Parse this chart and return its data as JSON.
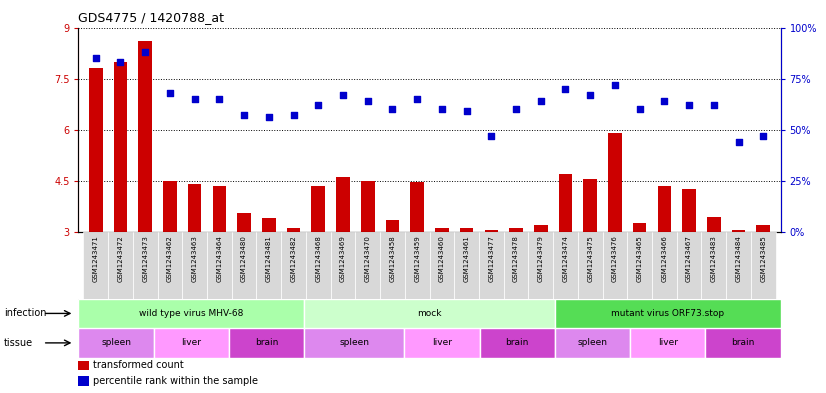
{
  "title": "GDS4775 / 1420788_at",
  "samples": [
    "GSM1243471",
    "GSM1243472",
    "GSM1243473",
    "GSM1243462",
    "GSM1243463",
    "GSM1243464",
    "GSM1243480",
    "GSM1243481",
    "GSM1243482",
    "GSM1243468",
    "GSM1243469",
    "GSM1243470",
    "GSM1243458",
    "GSM1243459",
    "GSM1243460",
    "GSM1243461",
    "GSM1243477",
    "GSM1243478",
    "GSM1243479",
    "GSM1243474",
    "GSM1243475",
    "GSM1243476",
    "GSM1243465",
    "GSM1243466",
    "GSM1243467",
    "GSM1243483",
    "GSM1243484",
    "GSM1243485"
  ],
  "transformed_count": [
    7.8,
    8.0,
    8.6,
    4.5,
    4.4,
    4.35,
    3.55,
    3.4,
    3.1,
    4.35,
    4.6,
    4.5,
    3.35,
    4.45,
    3.1,
    3.1,
    3.05,
    3.1,
    3.2,
    4.7,
    4.55,
    5.9,
    3.25,
    4.35,
    4.25,
    3.45,
    3.05,
    3.2
  ],
  "percentile": [
    85,
    83,
    88,
    68,
    65,
    65,
    57,
    56,
    57,
    62,
    67,
    64,
    60,
    65,
    60,
    59,
    47,
    60,
    64,
    70,
    67,
    72,
    60,
    64,
    62,
    62,
    44,
    47
  ],
  "ylim_left": [
    3,
    9
  ],
  "ylim_right": [
    0,
    100
  ],
  "yticks_left": [
    3,
    4.5,
    6,
    7.5,
    9
  ],
  "yticks_right": [
    0,
    25,
    50,
    75,
    100
  ],
  "infection_groups": [
    {
      "label": "wild type virus MHV-68",
      "start": 0,
      "end": 9,
      "color": "#aaffaa"
    },
    {
      "label": "mock",
      "start": 9,
      "end": 19,
      "color": "#ccffcc"
    },
    {
      "label": "mutant virus ORF73.stop",
      "start": 19,
      "end": 28,
      "color": "#55dd55"
    }
  ],
  "tissue_groups": [
    {
      "label": "spleen",
      "start": 0,
      "end": 3,
      "color": "#dd88ee"
    },
    {
      "label": "liver",
      "start": 3,
      "end": 6,
      "color": "#ff99ff"
    },
    {
      "label": "brain",
      "start": 6,
      "end": 9,
      "color": "#cc44cc"
    },
    {
      "label": "spleen",
      "start": 9,
      "end": 13,
      "color": "#dd88ee"
    },
    {
      "label": "liver",
      "start": 13,
      "end": 16,
      "color": "#ff99ff"
    },
    {
      "label": "brain",
      "start": 16,
      "end": 19,
      "color": "#cc44cc"
    },
    {
      "label": "spleen",
      "start": 19,
      "end": 22,
      "color": "#dd88ee"
    },
    {
      "label": "liver",
      "start": 22,
      "end": 25,
      "color": "#ff99ff"
    },
    {
      "label": "brain",
      "start": 25,
      "end": 28,
      "color": "#cc44cc"
    }
  ],
  "bar_color": "#cc0000",
  "dot_color": "#0000cc",
  "left_axis_color": "#cc0000",
  "right_axis_color": "#0000cc",
  "plot_bg": "#ffffff",
  "tick_bg": "#dddddd"
}
